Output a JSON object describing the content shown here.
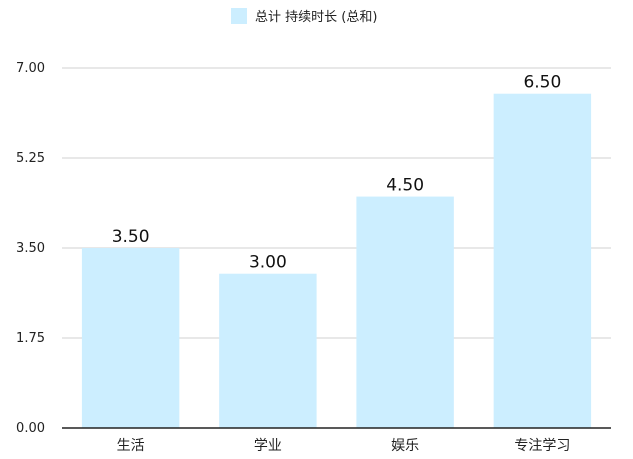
{
  "chart_data": {
    "type": "bar",
    "categories": [
      "生活",
      "学业",
      "娱乐",
      "专注学习"
    ],
    "series": [
      {
        "name": "总计 持续时长 (总和)",
        "values": [
          3.5,
          3.0,
          4.5,
          6.5
        ]
      }
    ],
    "data_labels": [
      "3.50",
      "3.00",
      "4.50",
      "6.50"
    ],
    "y_ticks": [
      "0.00",
      "1.75",
      "3.50",
      "5.25",
      "7.00"
    ],
    "ylim": [
      0,
      7
    ],
    "grid": true,
    "legend_position": "top-center",
    "bar_color": "#cceeff",
    "grid_color": "#d0d0d0",
    "axis_color": "#222222"
  }
}
